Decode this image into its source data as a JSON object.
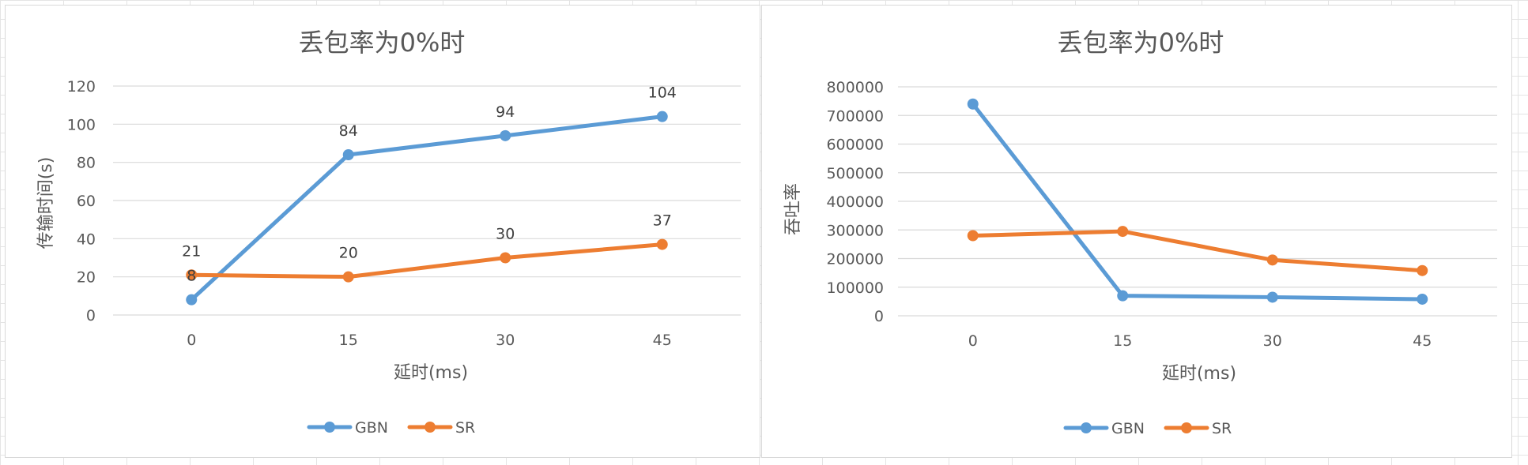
{
  "chart_data": [
    {
      "type": "line",
      "title": "丢包率为0%时",
      "xlabel": "延时(ms)",
      "ylabel": "传输时间(s)",
      "categories": [
        "0",
        "15",
        "30",
        "45"
      ],
      "ylim": [
        0,
        120
      ],
      "yticks": [
        0,
        20,
        40,
        60,
        80,
        100,
        120
      ],
      "grid": true,
      "legend": "bottom",
      "data_labels": true,
      "series": [
        {
          "name": "GBN",
          "values": [
            8,
            84,
            94,
            104
          ],
          "color": "#5B9BD5"
        },
        {
          "name": "SR",
          "values": [
            21,
            20,
            30,
            37
          ],
          "color": "#ED7D31"
        }
      ]
    },
    {
      "type": "line",
      "title": "丢包率为0%时",
      "xlabel": "延时(ms)",
      "ylabel": "吞吐率",
      "categories": [
        "0",
        "15",
        "30",
        "45"
      ],
      "ylim": [
        0,
        800000
      ],
      "yticks": [
        0,
        100000,
        200000,
        300000,
        400000,
        500000,
        600000,
        700000,
        800000
      ],
      "grid": true,
      "legend": "bottom",
      "data_labels": false,
      "series": [
        {
          "name": "GBN",
          "values": [
            740000,
            70000,
            65000,
            58000
          ],
          "color": "#5B9BD5"
        },
        {
          "name": "SR",
          "values": [
            280000,
            295000,
            195000,
            158000
          ],
          "color": "#ED7D31"
        }
      ]
    }
  ]
}
